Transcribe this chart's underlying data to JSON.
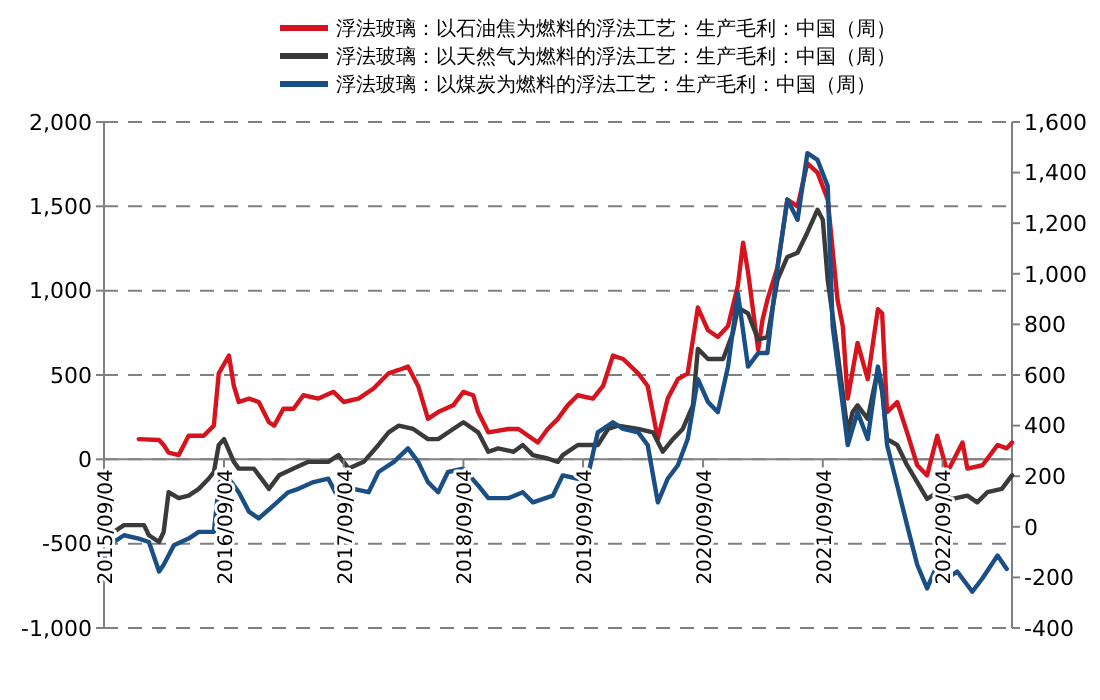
{
  "chart_data": {
    "type": "line",
    "legend": "top",
    "grid": "y",
    "line_style": "solid",
    "marker": "none",
    "xlim": [
      "2015-09-04",
      "2023-04-04"
    ],
    "xticks": [
      {
        "value": "2015-09-04",
        "label": "2015/09/04"
      },
      {
        "value": "2016-09-04",
        "label": "2016/09/04"
      },
      {
        "value": "2017-09-04",
        "label": "2017/09/04"
      },
      {
        "value": "2018-09-04",
        "label": "2018/09/04"
      },
      {
        "value": "2019-09-04",
        "label": "2019/09/04"
      },
      {
        "value": "2020-09-04",
        "label": "2020/09/04"
      },
      {
        "value": "2021-09-04",
        "label": "2021/09/04"
      },
      {
        "value": "2022-09-04",
        "label": "2022/09/04"
      }
    ],
    "ylim": [
      -1000,
      2000
    ],
    "yticks": [
      {
        "value": -1000,
        "label": "-1,000"
      },
      {
        "value": -500,
        "label": "-500"
      },
      0,
      500,
      {
        "value": 1000,
        "label": "1,000"
      },
      {
        "value": 1500,
        "label": "1,500"
      },
      {
        "value": 2000,
        "label": "2,000"
      }
    ],
    "y2lim": [
      -400,
      1600
    ],
    "y2ticks": [
      {
        "value": -400,
        "label": "-400"
      },
      {
        "value": -200,
        "label": "-200"
      },
      0,
      200,
      400,
      600,
      800,
      {
        "value": 1000,
        "label": "1,000"
      },
      {
        "value": 1200,
        "label": "1,200"
      },
      {
        "value": 1400,
        "label": "1,400"
      },
      {
        "value": 1600,
        "label": "1,600"
      }
    ],
    "series": [
      {
        "name": "浮法玻璃：以石油焦为燃料的浮法工艺：生产毛利：中国（周）",
        "color": "#d7141d",
        "x": [
          "2015-12-19",
          "2016-02-19",
          "2016-03-04",
          "2016-03-19",
          "2016-04-19",
          "2016-05-19",
          "2016-07-04",
          "2016-08-04",
          "2016-08-19",
          "2016-09-19",
          "2016-10-04",
          "2016-10-19",
          "2016-11-19",
          "2016-12-19",
          "2017-01-19",
          "2017-02-04",
          "2017-03-04",
          "2017-04-04",
          "2017-05-04",
          "2017-06-19",
          "2017-08-04",
          "2017-09-04",
          "2017-10-19",
          "2017-12-04",
          "2018-01-19",
          "2018-02-19",
          "2018-03-19",
          "2018-04-19",
          "2018-05-19",
          "2018-06-19",
          "2018-08-04",
          "2018-09-04",
          "2018-10-04",
          "2018-10-19",
          "2018-11-19",
          "2019-01-19",
          "2019-02-19",
          "2019-04-19",
          "2019-05-19",
          "2019-06-19",
          "2019-07-19",
          "2019-08-19",
          "2019-10-04",
          "2019-11-04",
          "2019-12-04",
          "2020-01-04",
          "2020-02-19",
          "2020-03-19",
          "2020-04-19",
          "2020-05-19",
          "2020-06-19",
          "2020-07-19",
          "2020-08-19",
          "2020-09-19",
          "2020-10-19",
          "2020-11-19",
          "2020-12-19",
          "2021-01-04",
          "2021-01-19",
          "2021-02-19",
          "2021-03-04",
          "2021-03-19",
          "2021-04-19",
          "2021-05-19",
          "2021-06-19",
          "2021-07-19",
          "2021-08-19",
          "2021-09-19",
          "2021-10-19",
          "2021-11-04",
          "2021-11-19",
          "2021-12-19",
          "2022-01-19",
          "2022-02-19",
          "2022-03-04",
          "2022-03-19",
          "2022-04-19",
          "2022-05-19",
          "2022-06-19",
          "2022-07-19",
          "2022-08-19",
          "2022-09-19",
          "2022-11-04",
          "2022-11-19",
          "2023-01-04",
          "2023-02-19",
          "2023-03-19",
          "2023-04-04"
        ],
        "values": [
          120,
          115,
          85,
          40,
          25,
          140,
          140,
          200,
          510,
          615,
          435,
          340,
          360,
          340,
          220,
          200,
          300,
          300,
          380,
          360,
          400,
          340,
          360,
          420,
          510,
          530,
          550,
          435,
          240,
          280,
          320,
          400,
          380,
          280,
          160,
          180,
          180,
          100,
          180,
          240,
          320,
          380,
          360,
          435,
          615,
          595,
          510,
          435,
          120,
          360,
          475,
          510,
          900,
          765,
          725,
          790,
          1030,
          1285,
          1110,
          650,
          825,
          945,
          1140,
          1540,
          1500,
          1755,
          1700,
          1540,
          945,
          790,
          360,
          690,
          475,
          890,
          865,
          280,
          340,
          160,
          -35,
          -95,
          140,
          -75,
          100,
          -55,
          -35,
          85,
          65,
          100
        ]
      },
      {
        "name": "浮法玻璃：以天然气为燃料的浮法工艺：生产毛利：中国（周）",
        "color": "#3a3a3a",
        "x": [
          "2015-09-04",
          "2015-10-04",
          "2015-11-04",
          "2016-01-04",
          "2016-01-19",
          "2016-02-19",
          "2016-03-04",
          "2016-03-19",
          "2016-04-19",
          "2016-05-19",
          "2016-06-19",
          "2016-07-19",
          "2016-08-04",
          "2016-08-19",
          "2016-09-04",
          "2016-10-04",
          "2016-10-19",
          "2016-12-04",
          "2017-01-04",
          "2017-01-19",
          "2017-02-19",
          "2017-04-04",
          "2017-05-19",
          "2017-07-19",
          "2017-08-19",
          "2017-09-19",
          "2017-11-04",
          "2017-12-19",
          "2018-01-19",
          "2018-02-19",
          "2018-04-04",
          "2018-05-19",
          "2018-06-19",
          "2018-08-04",
          "2018-09-04",
          "2018-10-19",
          "2018-11-19",
          "2018-12-19",
          "2019-02-04",
          "2019-03-04",
          "2019-04-04",
          "2019-05-19",
          "2019-06-19",
          "2019-07-04",
          "2019-08-19",
          "2019-10-19",
          "2019-11-19",
          "2019-12-19",
          "2020-02-19",
          "2020-04-04",
          "2020-05-04",
          "2020-06-04",
          "2020-07-04",
          "2020-08-04",
          "2020-08-19",
          "2020-09-19",
          "2020-11-04",
          "2020-12-04",
          "2020-12-19",
          "2021-01-19",
          "2021-02-19",
          "2021-03-19",
          "2021-04-19",
          "2021-05-19",
          "2021-06-19",
          "2021-07-19",
          "2021-08-19",
          "2021-09-04",
          "2021-09-19",
          "2021-10-19",
          "2021-11-19",
          "2021-12-04",
          "2021-12-19",
          "2022-01-19",
          "2022-02-19",
          "2022-03-04",
          "2022-03-19",
          "2022-04-19",
          "2022-05-19",
          "2022-06-19",
          "2022-07-19",
          "2022-08-19",
          "2022-10-04",
          "2022-11-19",
          "2022-12-19",
          "2023-01-19",
          "2023-03-04",
          "2023-04-04"
        ],
        "values": [
          -470,
          -430,
          -390,
          -390,
          -450,
          -490,
          -430,
          -195,
          -230,
          -215,
          -175,
          -115,
          -75,
          85,
          120,
          -15,
          -55,
          -55,
          -135,
          -175,
          -95,
          -55,
          -15,
          -15,
          25,
          -55,
          -15,
          85,
          160,
          200,
          180,
          120,
          120,
          180,
          220,
          160,
          45,
          65,
          45,
          85,
          25,
          5,
          -15,
          25,
          85,
          85,
          180,
          200,
          180,
          160,
          45,
          120,
          180,
          320,
          655,
          595,
          595,
          750,
          900,
          865,
          710,
          725,
          1065,
          1200,
          1225,
          1345,
          1480,
          1420,
          1065,
          635,
          160,
          280,
          320,
          240,
          535,
          400,
          120,
          85,
          -35,
          -135,
          -235,
          -195,
          -235,
          -215,
          -255,
          -195,
          -175,
          -95
        ]
      },
      {
        "name": "浮法玻璃：以煤炭为燃料的浮法工艺：生产毛利：中国（周）",
        "color": "#1a4f86",
        "x": [
          "2015-09-04",
          "2015-10-04",
          "2015-11-04",
          "2015-12-19",
          "2016-01-19",
          "2016-02-19",
          "2016-03-04",
          "2016-04-04",
          "2016-05-19",
          "2016-06-19",
          "2016-08-04",
          "2016-08-19",
          "2016-09-04",
          "2016-09-19",
          "2016-10-19",
          "2016-11-19",
          "2016-12-19",
          "2017-02-04",
          "2017-03-19",
          "2017-04-19",
          "2017-06-04",
          "2017-07-19",
          "2017-08-19",
          "2017-10-04",
          "2017-11-19",
          "2017-12-19",
          "2018-02-04",
          "2018-03-19",
          "2018-04-19",
          "2018-05-19",
          "2018-06-19",
          "2018-07-19",
          "2018-09-04",
          "2018-10-19",
          "2018-11-19",
          "2019-01-19",
          "2019-03-04",
          "2019-04-04",
          "2019-06-04",
          "2019-07-04",
          "2019-08-19",
          "2019-09-19",
          "2019-10-19",
          "2019-12-04",
          "2020-01-04",
          "2020-02-19",
          "2020-03-19",
          "2020-04-19",
          "2020-05-19",
          "2020-06-19",
          "2020-07-19",
          "2020-08-19",
          "2020-09-19",
          "2020-10-19",
          "2020-11-19",
          "2020-12-19",
          "2021-01-19",
          "2021-02-19",
          "2021-03-19",
          "2021-04-19",
          "2021-05-19",
          "2021-06-19",
          "2021-07-19",
          "2021-08-19",
          "2021-09-19",
          "2021-10-04",
          "2021-11-04",
          "2021-11-19",
          "2021-12-19",
          "2022-01-19",
          "2022-02-19",
          "2022-03-04",
          "2022-03-19",
          "2022-04-19",
          "2022-05-19",
          "2022-06-19",
          "2022-07-19",
          "2022-08-19",
          "2022-09-19",
          "2022-10-19",
          "2022-12-04",
          "2023-01-04",
          "2023-02-19",
          "2023-03-19"
        ],
        "values": [
          -585,
          -490,
          -450,
          -470,
          -490,
          -665,
          -625,
          -510,
          -470,
          -430,
          -430,
          -155,
          -75,
          -115,
          -195,
          -310,
          -350,
          -270,
          -195,
          -175,
          -135,
          -115,
          -230,
          -175,
          -195,
          -75,
          -15,
          65,
          -15,
          -135,
          -195,
          -75,
          -55,
          -155,
          -230,
          -230,
          -195,
          -255,
          -215,
          -95,
          -115,
          -95,
          160,
          220,
          180,
          160,
          85,
          -255,
          -115,
          -35,
          120,
          475,
          340,
          280,
          550,
          985,
          550,
          630,
          630,
          1140,
          1540,
          1420,
          1815,
          1775,
          1620,
          790,
          320,
          85,
          280,
          120,
          550,
          435,
          85,
          -155,
          -390,
          -625,
          -765,
          -625,
          -705,
          -665,
          -785,
          -705,
          -570,
          -650
        ]
      }
    ]
  }
}
